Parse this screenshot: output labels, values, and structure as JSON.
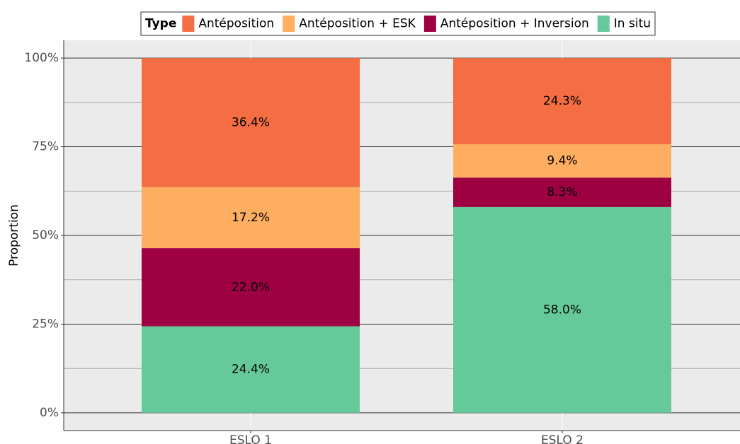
{
  "chart_data": {
    "type": "stacked_bar",
    "categories": [
      "ESLO 1",
      "ESLO 2"
    ],
    "y_label": "Proportion",
    "legend_title": "Type",
    "legend_position": "top",
    "series": [
      {
        "name": "Antéposition",
        "color": "#f46d43",
        "values": [
          36.4,
          24.3
        ],
        "value_labels": [
          "36.4%",
          "24.3%"
        ]
      },
      {
        "name": "Antéposition + ESK",
        "color": "#fdae61",
        "values": [
          17.2,
          9.4
        ],
        "value_labels": [
          "17.2%",
          "9.4%"
        ]
      },
      {
        "name": "Antéposition + Inversion",
        "color": "#9e0142",
        "values": [
          22.0,
          8.3
        ],
        "value_labels": [
          "22.0%",
          "8.3%"
        ]
      },
      {
        "name": "In situ",
        "color": "#66c99a",
        "values": [
          24.4,
          58.0
        ],
        "value_labels": [
          "24.4%",
          "58.0%"
        ]
      }
    ],
    "ylim": [
      -5,
      105
    ],
    "yticks": [
      {
        "value": 0,
        "label": "0%"
      },
      {
        "value": 25,
        "label": "25%"
      },
      {
        "value": 50,
        "label": "50%"
      },
      {
        "value": 75,
        "label": "75%"
      },
      {
        "value": 100,
        "label": "100%"
      }
    ],
    "minor_yticks": [
      12.5,
      37.5,
      62.5,
      87.5
    ],
    "grid": true
  }
}
